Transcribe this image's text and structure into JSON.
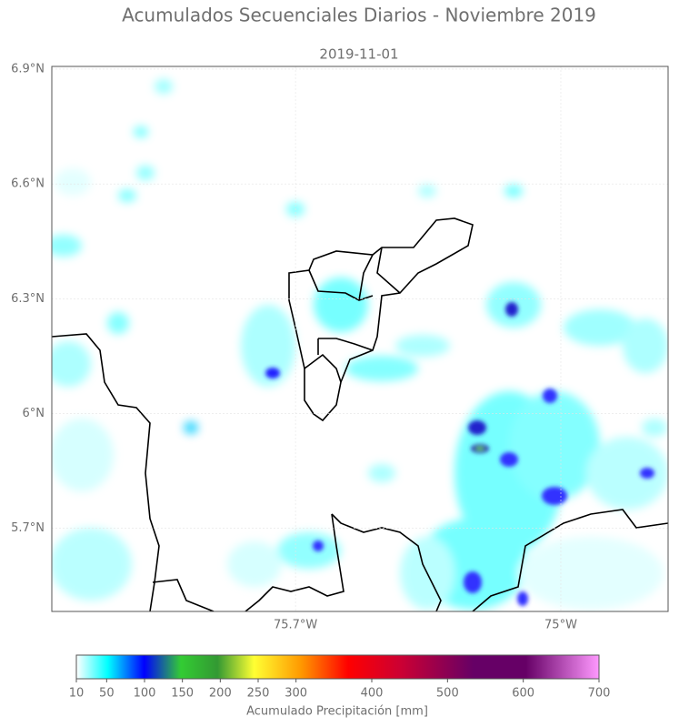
{
  "title": "Acumulados Secuenciales Diarios - Noviembre 2019",
  "subtitle": "2019-11-01",
  "map": {
    "xlim": [
      -76.343,
      -74.717
    ],
    "ylim": [
      5.483,
      6.907
    ],
    "xticks": [
      {
        "value": -75.7,
        "label": "75.7°W"
      },
      {
        "value": -75,
        "label": "75°W"
      }
    ],
    "yticks": [
      {
        "value": 6.9,
        "label": "6.9°N"
      },
      {
        "value": 6.6,
        "label": "6.6°N"
      },
      {
        "value": 6.3,
        "label": "6.3°N"
      },
      {
        "value": 6,
        "label": "6°N"
      },
      {
        "value": 5.7,
        "label": "5.7°N"
      }
    ]
  },
  "colorbar": {
    "lim": [
      10,
      700
    ],
    "ticks": [
      10,
      50,
      100,
      150,
      200,
      250,
      300,
      400,
      500,
      600,
      700
    ],
    "label": "Acumulado Precipitación [mm]"
  }
}
